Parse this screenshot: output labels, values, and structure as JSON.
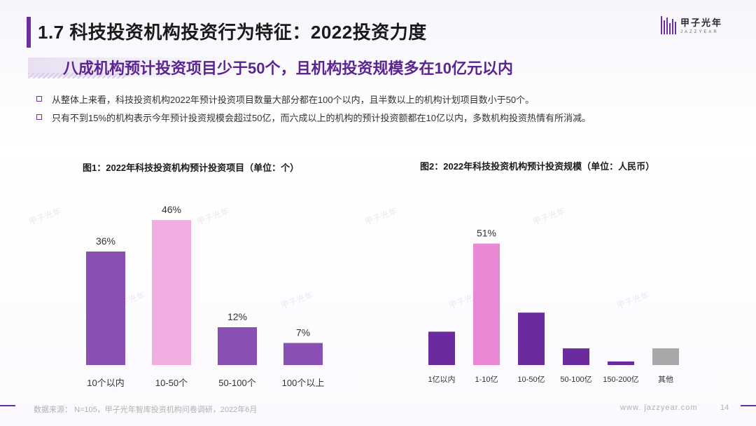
{
  "header": {
    "title": "1.7 科技投资机构投资行为特征：2022投资力度",
    "logo_cn": "甲子光年",
    "logo_en": "JAZZYEAR"
  },
  "subtitle": "八成机构预计投资项目少于50个，且机构投资规模多在10亿元以内",
  "bullets": [
    "从整体上来看，科技投资机构2022年预计投资项目数量大部分都在100个以内，且半数以上的机构计划项目数小于50个。",
    "只有不到15%的机构表示今年预计投资规模会超过50亿，而六成以上的机构的预计投资额都在10亿以内，多数机构投资热情有所消减。"
  ],
  "chart_data": [
    {
      "type": "bar",
      "title": "图1：2022年科技投资机构预计投资项目（单位：个）",
      "categories": [
        "10个以内",
        "10-50个",
        "50-100个",
        "100个以上"
      ],
      "values": [
        36,
        46,
        12,
        7
      ],
      "value_labels": [
        "36%",
        "46%",
        "12%",
        "7%"
      ],
      "colors": [
        "#8a4fb3",
        "#f1aee0",
        "#8a4fb3",
        "#8a4fb3"
      ],
      "ylim": [
        0,
        50
      ],
      "grid": false
    },
    {
      "type": "bar",
      "title": "图2：2022年科技投资机构预计投资规模（单位：人民币）",
      "categories": [
        "1亿以内",
        "1-10亿",
        "10-50亿",
        "50-100亿",
        "150-200亿",
        "其他"
      ],
      "values": [
        14,
        51,
        22,
        7,
        1.5,
        7
      ],
      "value_labels": [
        "",
        "51%",
        "",
        "",
        "",
        ""
      ],
      "colors": [
        "#6b2a9e",
        "#e887d4",
        "#6b2a9e",
        "#6b2a9e",
        "#6b2a9e",
        "#a8a8a8"
      ],
      "ylim": [
        0,
        60
      ],
      "grid": false
    }
  ],
  "footer": {
    "source": "数据来源：  N=105，甲子光年智库投资机构问卷调研，2022年6月",
    "url": "www. jazzyear.com",
    "page": "14"
  },
  "watermark": "甲子光年"
}
